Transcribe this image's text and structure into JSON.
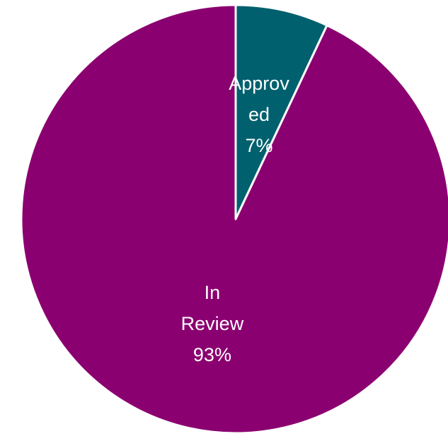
{
  "chart_data": {
    "type": "pie",
    "categories": [
      "Approved",
      "In Review"
    ],
    "values": [
      7,
      93
    ],
    "value_labels": [
      "7%",
      "93%"
    ],
    "colors": [
      "#00606e",
      "#8b0070"
    ]
  }
}
